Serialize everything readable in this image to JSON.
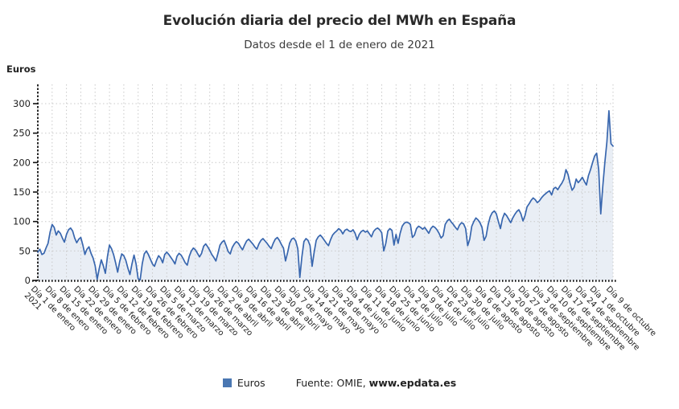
{
  "header": {
    "title": "Evolución diaria del precio del MWh en España",
    "subtitle": "Datos desde el 1 de enero de 2021"
  },
  "y_axis_label": "Euros",
  "legend": {
    "series_label": "Euros"
  },
  "source": {
    "prefix": "Fuente: OMIE, ",
    "site": "www.epdata.es"
  },
  "colors": {
    "line": "#3866ae",
    "fill": "#e9eef5",
    "legend_square": "#4a77b2",
    "grid": "#c9c9c9",
    "axis": "#111111",
    "tick_text": "#222222"
  },
  "chart_data": {
    "type": "area",
    "title": "Evolución diaria del precio del MWh en España",
    "subtitle": "Datos desde el 1 de enero de 2021",
    "ylabel": "Euros",
    "xlabel": "",
    "ylim": [
      0,
      300
    ],
    "y_ticks": [
      0,
      50,
      100,
      150,
      200,
      250,
      300
    ],
    "grid": true,
    "legend_position": "bottom",
    "series_name": "Euros",
    "x_ticks": [
      {
        "index": 0,
        "label": "Día 1 de enero",
        "label_line2": "2021"
      },
      {
        "index": 7,
        "label": "Día 8 de enero"
      },
      {
        "index": 14,
        "label": "Día 15 de enero"
      },
      {
        "index": 21,
        "label": "Día 22 de enero"
      },
      {
        "index": 28,
        "label": "Día 29 de enero"
      },
      {
        "index": 35,
        "label": "Día 5 de febrero"
      },
      {
        "index": 42,
        "label": "Día 12 de febrero"
      },
      {
        "index": 49,
        "label": "Día 19 de febrero"
      },
      {
        "index": 56,
        "label": "Día 26 de febrero"
      },
      {
        "index": 63,
        "label": "Día 5 de marzo"
      },
      {
        "index": 70,
        "label": "Día 12 de marzo"
      },
      {
        "index": 77,
        "label": "Día 19 de marzo"
      },
      {
        "index": 84,
        "label": "Día 26 de marzo"
      },
      {
        "index": 91,
        "label": "Día 2 de abril"
      },
      {
        "index": 98,
        "label": "Día 9 de abril"
      },
      {
        "index": 105,
        "label": "Día 16 de abril"
      },
      {
        "index": 112,
        "label": "Día 23 de abril"
      },
      {
        "index": 119,
        "label": "Día 30 de abril"
      },
      {
        "index": 126,
        "label": "Día 7 de mayo"
      },
      {
        "index": 133,
        "label": "Día 14 de mayo"
      },
      {
        "index": 140,
        "label": "Día 21 de mayo"
      },
      {
        "index": 147,
        "label": "Día 28 de mayo"
      },
      {
        "index": 154,
        "label": "Día 4 de junio"
      },
      {
        "index": 161,
        "label": "Día 11 de junio"
      },
      {
        "index": 168,
        "label": "Día 18 de junio"
      },
      {
        "index": 175,
        "label": "Día 25 de junio"
      },
      {
        "index": 182,
        "label": "Día 2 de julio"
      },
      {
        "index": 189,
        "label": "Día 9 de julio"
      },
      {
        "index": 196,
        "label": "Día 16 de julio"
      },
      {
        "index": 203,
        "label": "Día 23 de julio"
      },
      {
        "index": 210,
        "label": "Día 30 de julio"
      },
      {
        "index": 217,
        "label": "Día 6 de agosto"
      },
      {
        "index": 224,
        "label": "Día 13 de agosto"
      },
      {
        "index": 231,
        "label": "Día 20 de agosto"
      },
      {
        "index": 238,
        "label": "Día 27 de agosto"
      },
      {
        "index": 245,
        "label": "Día 3 de septiembre"
      },
      {
        "index": 252,
        "label": "Día 10 de septiembre"
      },
      {
        "index": 259,
        "label": "Día 17 de septiembre"
      },
      {
        "index": 266,
        "label": "Día 24 de septiembre"
      },
      {
        "index": 273,
        "label": "Día 1 de octubre"
      },
      {
        "index": 281,
        "label": "Día 9 de octubre"
      }
    ],
    "values": [
      48,
      53,
      44,
      46,
      55,
      63,
      82,
      95,
      90,
      77,
      84,
      80,
      72,
      65,
      78,
      86,
      89,
      84,
      72,
      64,
      70,
      73,
      60,
      44,
      53,
      57,
      46,
      38,
      25,
      2,
      20,
      35,
      25,
      12,
      40,
      60,
      54,
      44,
      30,
      14,
      32,
      45,
      42,
      34,
      21,
      10,
      28,
      43,
      28,
      3,
      1,
      28,
      45,
      50,
      44,
      36,
      28,
      24,
      34,
      42,
      38,
      30,
      44,
      48,
      44,
      39,
      34,
      28,
      41,
      46,
      43,
      37,
      30,
      26,
      41,
      50,
      55,
      52,
      46,
      40,
      46,
      58,
      62,
      57,
      51,
      44,
      39,
      33,
      46,
      60,
      65,
      68,
      59,
      49,
      45,
      56,
      62,
      66,
      63,
      57,
      52,
      60,
      67,
      70,
      66,
      62,
      57,
      53,
      62,
      68,
      71,
      67,
      63,
      58,
      54,
      63,
      70,
      73,
      68,
      61,
      55,
      33,
      47,
      63,
      70,
      72,
      67,
      54,
      5,
      40,
      66,
      71,
      68,
      59,
      24,
      48,
      68,
      74,
      77,
      73,
      68,
      63,
      59,
      69,
      77,
      81,
      84,
      88,
      85,
      79,
      85,
      87,
      84,
      83,
      86,
      80,
      69,
      78,
      83,
      85,
      82,
      84,
      79,
      74,
      83,
      87,
      89,
      86,
      81,
      50,
      63,
      84,
      88,
      85,
      60,
      78,
      63,
      80,
      92,
      97,
      99,
      98,
      95,
      73,
      77,
      88,
      92,
      90,
      87,
      90,
      85,
      80,
      88,
      92,
      90,
      86,
      80,
      72,
      76,
      95,
      101,
      104,
      99,
      95,
      90,
      86,
      94,
      98,
      96,
      88,
      59,
      70,
      92,
      100,
      106,
      103,
      98,
      90,
      68,
      75,
      95,
      108,
      115,
      118,
      113,
      100,
      88,
      105,
      114,
      110,
      104,
      98,
      106,
      112,
      117,
      120,
      113,
      101,
      110,
      125,
      130,
      136,
      140,
      137,
      132,
      135,
      140,
      144,
      147,
      150,
      152,
      145,
      156,
      158,
      154,
      160,
      165,
      172,
      188,
      180,
      165,
      153,
      158,
      172,
      166,
      170,
      175,
      168,
      162,
      178,
      188,
      200,
      211,
      216,
      188,
      113,
      160,
      200,
      235,
      288,
      232,
      228
    ]
  }
}
